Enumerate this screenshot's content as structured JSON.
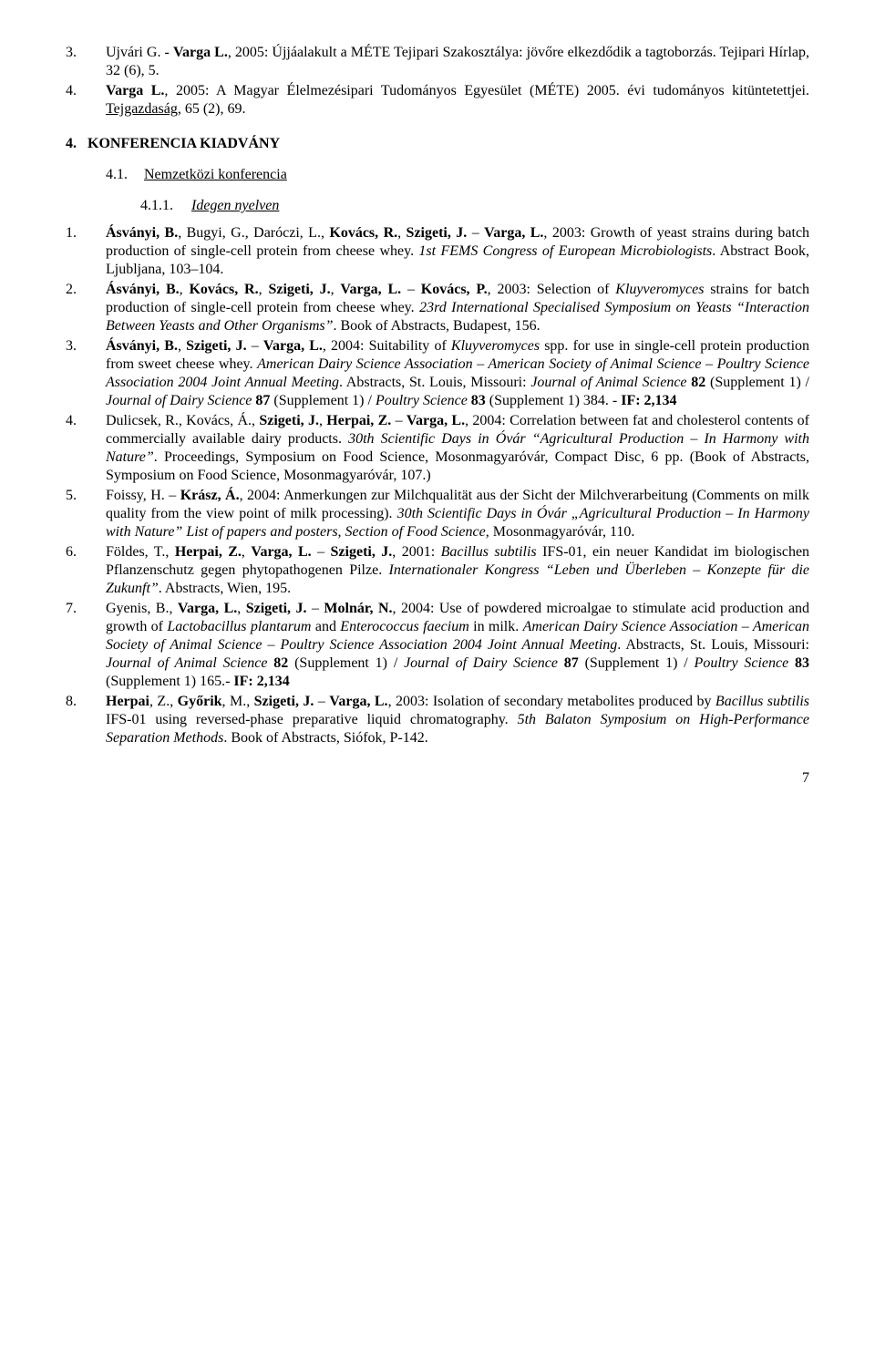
{
  "top_refs": [
    {
      "num": "3.",
      "html": "Ujvári G. - <b>Varga L.</b>, 2005: Újjáalakult a MÉTE Tejipari Szakosztálya: jövőre elkezdődik a tagtoborzás. Tejipari Hírlap, 32 (6), 5."
    },
    {
      "num": "4.",
      "html": "<b>Varga L.</b>, 2005: A Magyar Élelmezésipari Tudományos Egyesület (MÉTE) 2005. évi tudományos kitüntetettjei. <u>Tejgazdaság</u>, 65 (2), 69."
    }
  ],
  "section": {
    "num": "4.",
    "title": "KONFERENCIA KIADVÁNY"
  },
  "subsection": {
    "num": "4.1.",
    "title": "Nemzetközi konferencia"
  },
  "subsubsection": {
    "num": "4.1.1.",
    "title": "Idegen nyelven"
  },
  "refs": [
    {
      "num": "1.",
      "html": "<b>Ásványi, B.</b>, Bugyi, G., Daróczi, L., <b>Kovács, R.</b>, <b>Szigeti, J.</b> – <b>Varga, L.</b>, 2003: Growth of yeast strains during batch production of single-cell protein from cheese whey. <i>1st FEMS Congress of European Microbiologists</i>. Abstract Book, Ljubljana, 103–104."
    },
    {
      "num": "2.",
      "html": "<b>Ásványi, B.</b>, <b>Kovács, R.</b>, <b>Szigeti, J.</b>, <b>Varga, L.</b> – <b>Kovács, P.</b>, 2003: Selection of <i>Kluyveromyces</i> strains for batch production of single-cell protein from cheese whey. <i>23rd International Specialised Symposium on Yeasts &ldquo;Interaction Between Yeasts and Other Organisms&rdquo;</i>. Book of Abstracts, Budapest, 156."
    },
    {
      "num": "3.",
      "html": "<b>Ásványi, B.</b>, <b>Szigeti, J.</b> – <b>Varga, L.</b>, 2004: Suitability of <i>Kluyveromyces</i> spp. for use in single-cell protein production from sweet cheese whey. <i>American Dairy Science Association – American Society of Animal Science – Poultry Science Association 2004 Joint Annual Meeting</i>. Abstracts, St. Louis, Missouri: <i>Journal of Animal Science</i> <b>82</b> (Supplement 1) / <i>Journal of Dairy Science</i> <b>87</b> (Supplement 1) / <i>Poultry Science</i> <b>83</b> (Supplement 1) 384. - <b>IF: 2,134</b>"
    },
    {
      "num": "4.",
      "html": "Dulicsek, R., Kovács, Á., <b>Szigeti, J.</b>, <b>Herpai, Z.</b> – <b>Varga, L.</b>, 2004: Correlation between fat and cholesterol contents of commercially available dairy products. <i>30th Scientific Days in Óvár &ldquo;Agricultural Production – In Harmony with Nature&rdquo;</i>. Proceedings, Symposium on Food Science, Mosonmagyaróvár, Compact Disc, 6 pp. (Book of Abstracts, Symposium on Food Science, Mosonmagyaróvár, 107.)"
    },
    {
      "num": "5.",
      "html": "Foissy, H. – <b>Krász, Á.</b>, 2004: Anmerkungen zur Milchqualität aus der Sicht der Milchverarbeitung (Comments on milk quality from the view point of milk processing). <i>30th Scientific Days in Óvár „Agricultural Production – In Harmony with Nature&rdquo; List of papers and posters, Section of Food Science,</i> Mosonmagyaróvár, 110."
    },
    {
      "num": "6.",
      "html": "Földes, T., <b>Herpai, Z.</b>, <b>Varga, L.</b> – <b>Szigeti, J.</b>, 2001: <i>Bacillus subtilis</i> IFS-01, ein neuer Kandidat im biologischen Pflanzenschutz gegen phytopathogenen Pilze. <i>Internationaler Kongress &ldquo;Leben und Überleben – Konzepte für die Zukunft&rdquo;</i>. Abstracts, Wien, 195."
    },
    {
      "num": "7.",
      "html": "Gyenis, B., <b>Varga, L.</b>, <b>Szigeti, J.</b> – <b>Molnár, N.</b>, 2004: Use of powdered microalgae to stimulate acid production and growth of <i>Lactobacillus plantarum</i> and <i>Enterococcus faecium</i> in milk. <i>American Dairy Science Association – American Society of Animal Science – Poultry Science Association 2004 Joint Annual Meeting</i>. Abstracts, St. Louis, Missouri: <i>Journal of Animal Science</i> <b>82</b> (Supplement 1) / <i>Journal of Dairy Science</i> <b>87</b> (Supplement 1) / <i>Poultry Science</i> <b>83</b> (Supplement 1) 165.- <b>IF: 2,134</b>"
    },
    {
      "num": "8.",
      "html": "<b>Herpai</b>, Z., <b>Győrik</b>, M., <b>Szigeti, J.</b> – <b>Varga, L.</b>, 2003: Isolation of secondary metabolites produced by <i>Bacillus subtilis</i> IFS-01 using reversed-phase preparative liquid chromatography. <i>5th Balaton Symposium on High-Performance Separation Methods</i>. Book of Abstracts, Siófok, P-142."
    }
  ],
  "page_number": "7"
}
